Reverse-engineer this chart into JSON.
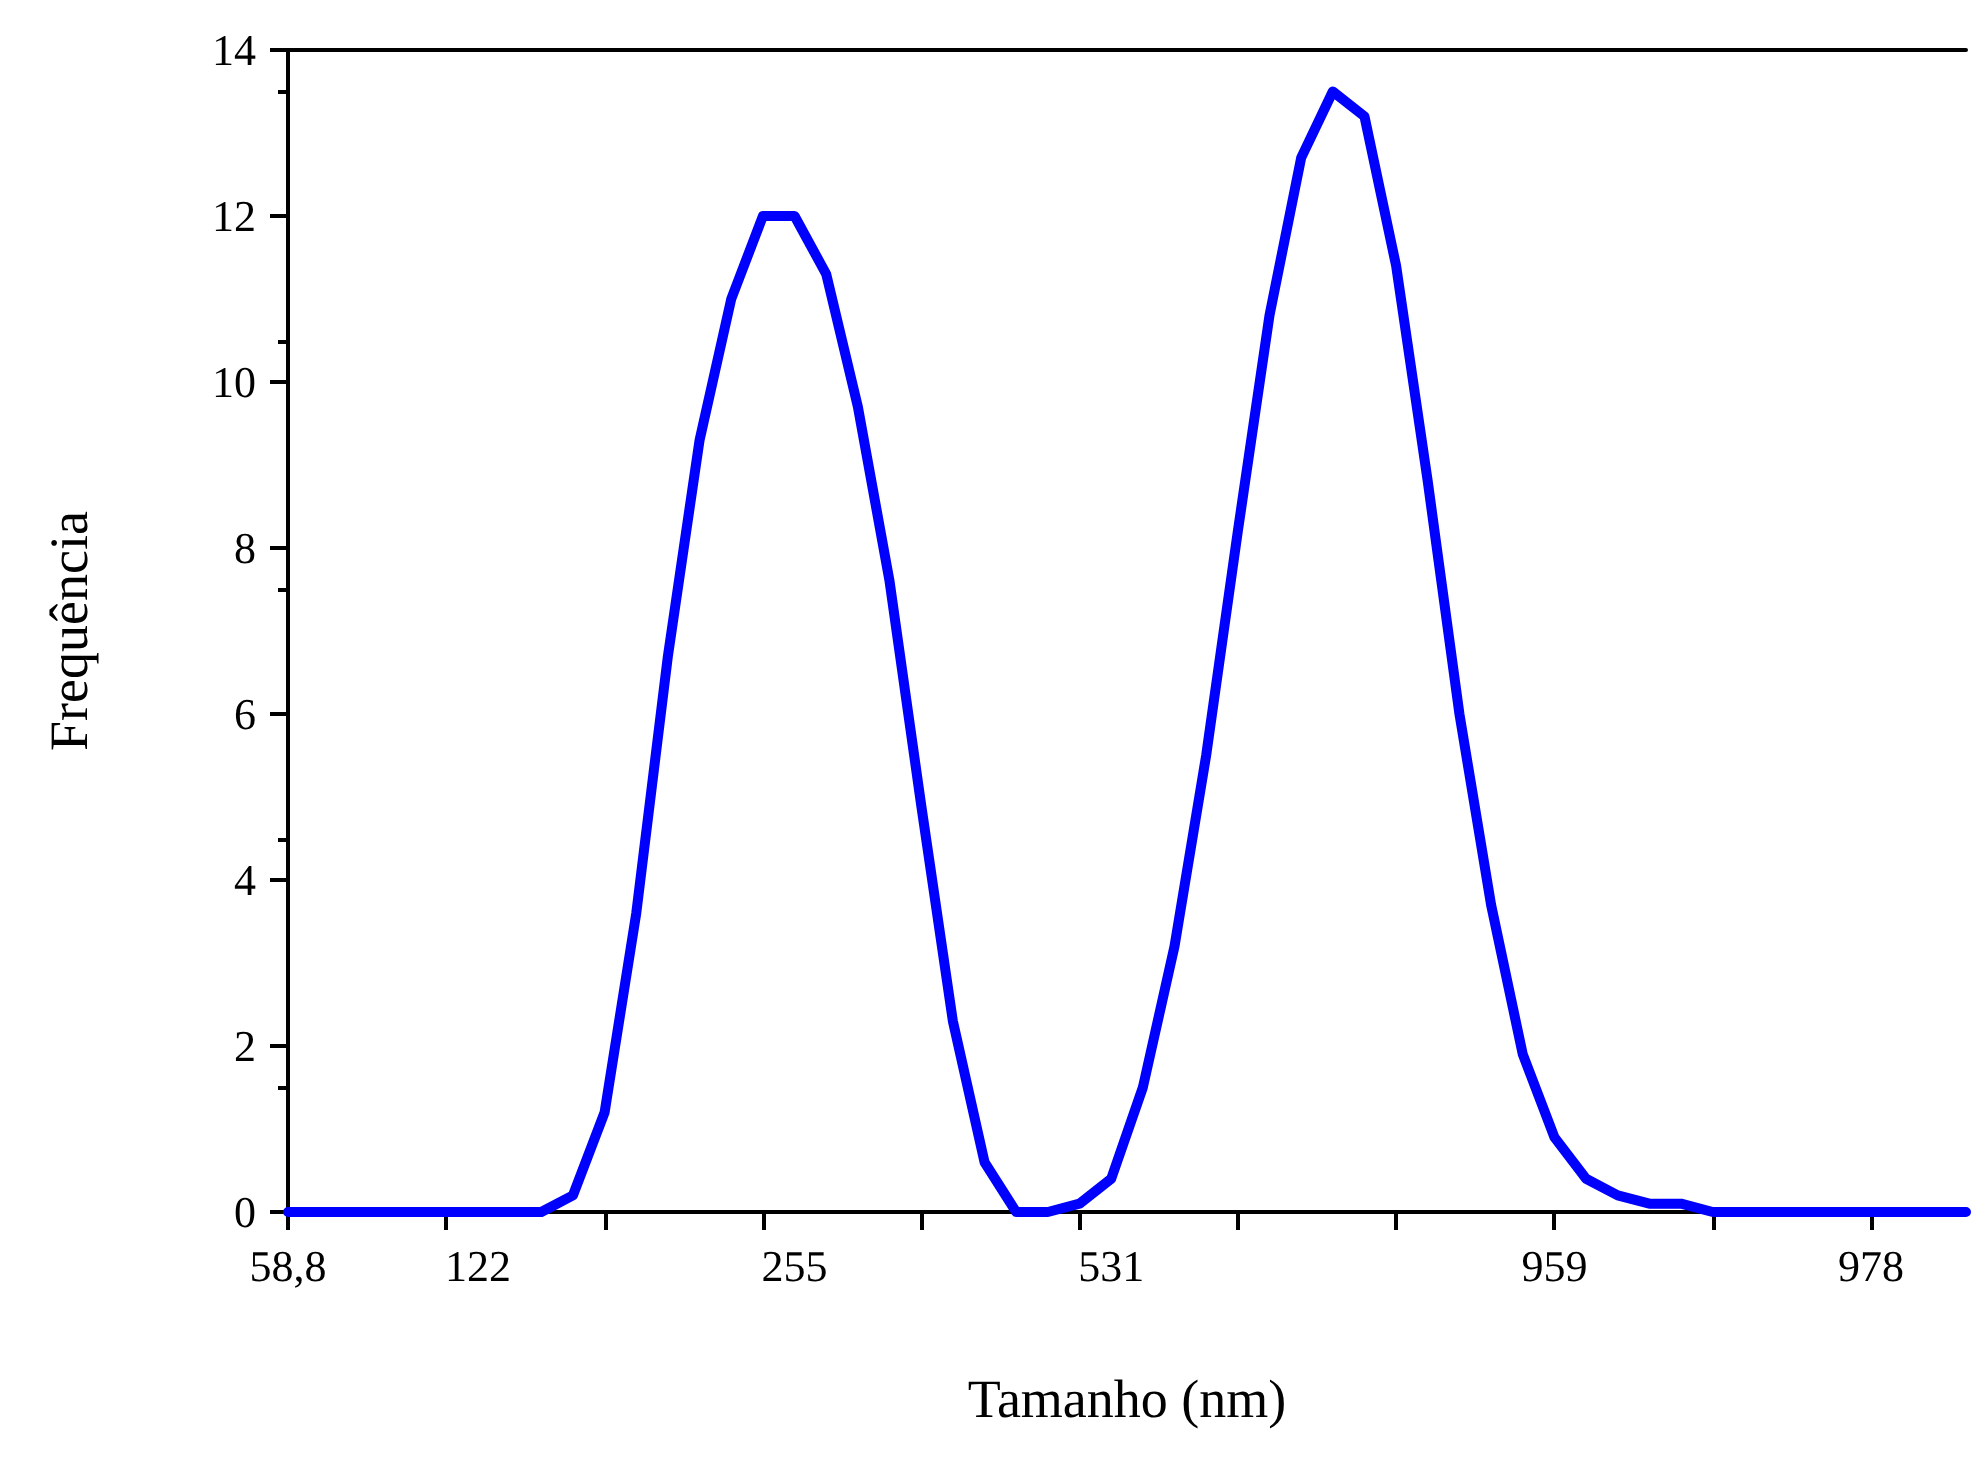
{
  "chart_data": {
    "type": "line",
    "xlabel": "Tamanho (nm)",
    "ylabel": "Frequência",
    "categories": [
      "58,8",
      null,
      null,
      null,
      null,
      null,
      "122",
      null,
      null,
      null,
      null,
      null,
      null,
      null,
      null,
      null,
      "255",
      null,
      null,
      null,
      null,
      null,
      null,
      null,
      null,
      null,
      "531",
      null,
      null,
      null,
      null,
      null,
      null,
      null,
      null,
      null,
      null,
      null,
      null,
      null,
      "959",
      null,
      null,
      null,
      null,
      null,
      null,
      null,
      null,
      null,
      "978",
      null,
      null,
      null
    ],
    "series": [
      {
        "color": "#0000ff",
        "values": [
          0,
          0,
          0,
          0,
          0,
          0,
          0,
          0,
          0,
          0.2,
          1.2,
          3.6,
          6.7,
          9.3,
          11.0,
          12.0,
          12.0,
          11.3,
          9.7,
          7.6,
          4.9,
          2.3,
          0.6,
          0,
          0,
          0.1,
          0.4,
          1.5,
          3.2,
          5.5,
          8.2,
          10.8,
          12.7,
          13.5,
          13.2,
          11.4,
          8.8,
          6.0,
          3.7,
          1.9,
          0.9,
          0.4,
          0.2,
          0.1,
          0.1,
          0,
          0,
          0,
          0,
          0,
          0,
          0,
          0,
          0
        ]
      }
    ],
    "ylim": [
      0,
      14
    ],
    "yticks": [
      0,
      2,
      4,
      6,
      8,
      10,
      12,
      14
    ],
    "marker": "none"
  }
}
